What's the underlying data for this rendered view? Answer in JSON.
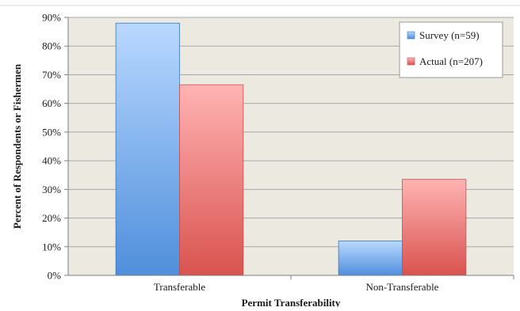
{
  "chart_data": {
    "type": "bar",
    "title": "",
    "xlabel": "Permit Transferability",
    "ylabel": "Percent of Respondents or Fishermen",
    "categories": [
      "Transferable",
      "Non-Transferable"
    ],
    "series": [
      {
        "name": "Survey (n=59)",
        "values": [
          88,
          12
        ],
        "color": "#5b9bd5"
      },
      {
        "name": "Actual (n=207)",
        "values": [
          66.5,
          33.5
        ],
        "color": "#e06666"
      }
    ],
    "ylim": [
      0,
      90
    ],
    "yticks": [
      0,
      10,
      20,
      30,
      40,
      50,
      60,
      70,
      80,
      90
    ],
    "ytick_labels": [
      "0%",
      "10%",
      "20%",
      "30%",
      "40%",
      "50%",
      "60%",
      "70%",
      "80%",
      "90%"
    ],
    "grid": true,
    "legend_position": "top-right",
    "plot_background": "#ece9e0"
  }
}
